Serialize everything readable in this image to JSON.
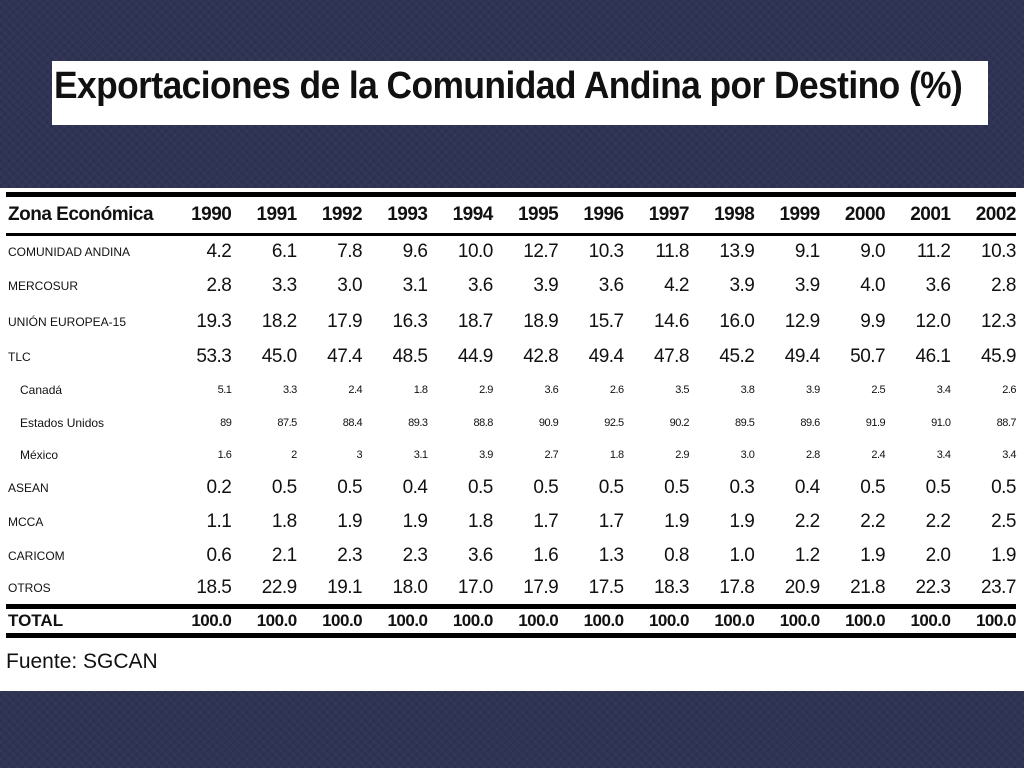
{
  "title": "Exportaciones de la Comunidad Andina por Destino (%)",
  "table": {
    "header": [
      "Zona Económica",
      "1990",
      "1991",
      "1992",
      "1993",
      "1994",
      "1995",
      "1996",
      "1997",
      "1998",
      "1999",
      "2000",
      "2001",
      "2002"
    ],
    "rows": [
      {
        "zone": "COMUNIDAD ANDINA",
        "sub": false,
        "values": [
          "4.2",
          "6.1",
          "7.8",
          "9.6",
          "10.0",
          "12.7",
          "10.3",
          "11.8",
          "13.9",
          "9.1",
          "9.0",
          "11.2",
          "10.3"
        ]
      },
      {
        "zone": "MERCOSUR",
        "sub": false,
        "values": [
          "2.8",
          "3.3",
          "3.0",
          "3.1",
          "3.6",
          "3.9",
          "3.6",
          "4.2",
          "3.9",
          "3.9",
          "4.0",
          "3.6",
          "2.8"
        ]
      },
      {
        "zone": "UNIÓN EUROPEA-15",
        "sub": false,
        "values": [
          "19.3",
          "18.2",
          "17.9",
          "16.3",
          "18.7",
          "18.9",
          "15.7",
          "14.6",
          "16.0",
          "12.9",
          "9.9",
          "12.0",
          "12.3"
        ]
      },
      {
        "zone": "TLC",
        "sub": false,
        "values": [
          "53.3",
          "45.0",
          "47.4",
          "48.5",
          "44.9",
          "42.8",
          "49.4",
          "47.8",
          "45.2",
          "49.4",
          "50.7",
          "46.1",
          "45.9"
        ]
      },
      {
        "zone": "Canadá",
        "sub": true,
        "values": [
          "5.1",
          "3.3",
          "2.4",
          "1.8",
          "2.9",
          "3.6",
          "2.6",
          "3.5",
          "3.8",
          "3.9",
          "2.5",
          "3.4",
          "2.6"
        ]
      },
      {
        "zone": "Estados Unidos",
        "sub": true,
        "values": [
          "89",
          "87.5",
          "88.4",
          "89.3",
          "88.8",
          "90.9",
          "92.5",
          "90.2",
          "89.5",
          "89.6",
          "91.9",
          "91.0",
          "88.7"
        ]
      },
      {
        "zone": "México",
        "sub": true,
        "values": [
          "1.6",
          "2",
          "3",
          "3.1",
          "3.9",
          "2.7",
          "1.8",
          "2.9",
          "3.0",
          "2.8",
          "2.4",
          "3.4",
          "3.4"
        ]
      },
      {
        "zone": "ASEAN",
        "sub": false,
        "values": [
          "0.2",
          "0.5",
          "0.5",
          "0.4",
          "0.5",
          "0.5",
          "0.5",
          "0.5",
          "0.3",
          "0.4",
          "0.5",
          "0.5",
          "0.5"
        ]
      },
      {
        "zone": "MCCA",
        "sub": false,
        "values": [
          "1.1",
          "1.8",
          "1.9",
          "1.9",
          "1.8",
          "1.7",
          "1.7",
          "1.9",
          "1.9",
          "2.2",
          "2.2",
          "2.2",
          "2.5"
        ]
      },
      {
        "zone": "CARICOM",
        "sub": false,
        "values": [
          "0.6",
          "2.1",
          "2.3",
          "2.3",
          "3.6",
          "1.6",
          "1.3",
          "0.8",
          "1.0",
          "1.2",
          "1.9",
          "2.0",
          "1.9"
        ]
      },
      {
        "zone": "OTROS",
        "sub": false,
        "values": [
          "18.5",
          "22.9",
          "19.1",
          "18.0",
          "17.0",
          "17.9",
          "17.5",
          "18.3",
          "17.8",
          "20.9",
          "21.8",
          "22.3",
          "23.7"
        ]
      }
    ],
    "total": {
      "zone": "TOTAL",
      "values": [
        "100.0",
        "100.0",
        "100.0",
        "100.0",
        "100.0",
        "100.0",
        "100.0",
        "100.0",
        "100.0",
        "100.0",
        "100.0",
        "100.0",
        "100.0"
      ]
    }
  },
  "source": "Fuente: SGCAN"
}
